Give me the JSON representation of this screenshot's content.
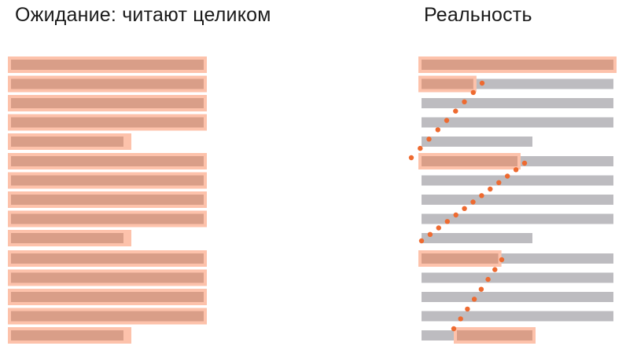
{
  "titles": {
    "left": "Ожидание: читают целиком",
    "right": "Реальность"
  },
  "colors": {
    "text_bar": "#d99e88",
    "highlight": "#fdc2ab",
    "unread_bar": "#bdbcc0",
    "gaze_dot": "#ee6a30",
    "title_text": "#1a1a1a"
  },
  "diagram": {
    "paragraphs": [
      {
        "lines": [
          1,
          1,
          1,
          1,
          0.6
        ]
      },
      {
        "lines": [
          1,
          1,
          1,
          1,
          0.6
        ]
      },
      {
        "lines": [
          1,
          1,
          1,
          1,
          0.6
        ]
      }
    ],
    "reality_read_fraction": [
      [
        1,
        0.27,
        0,
        0,
        0
      ],
      [
        0.5,
        0,
        0,
        0,
        0
      ],
      [
        0.4,
        0,
        0,
        0,
        0.85
      ]
    ]
  }
}
